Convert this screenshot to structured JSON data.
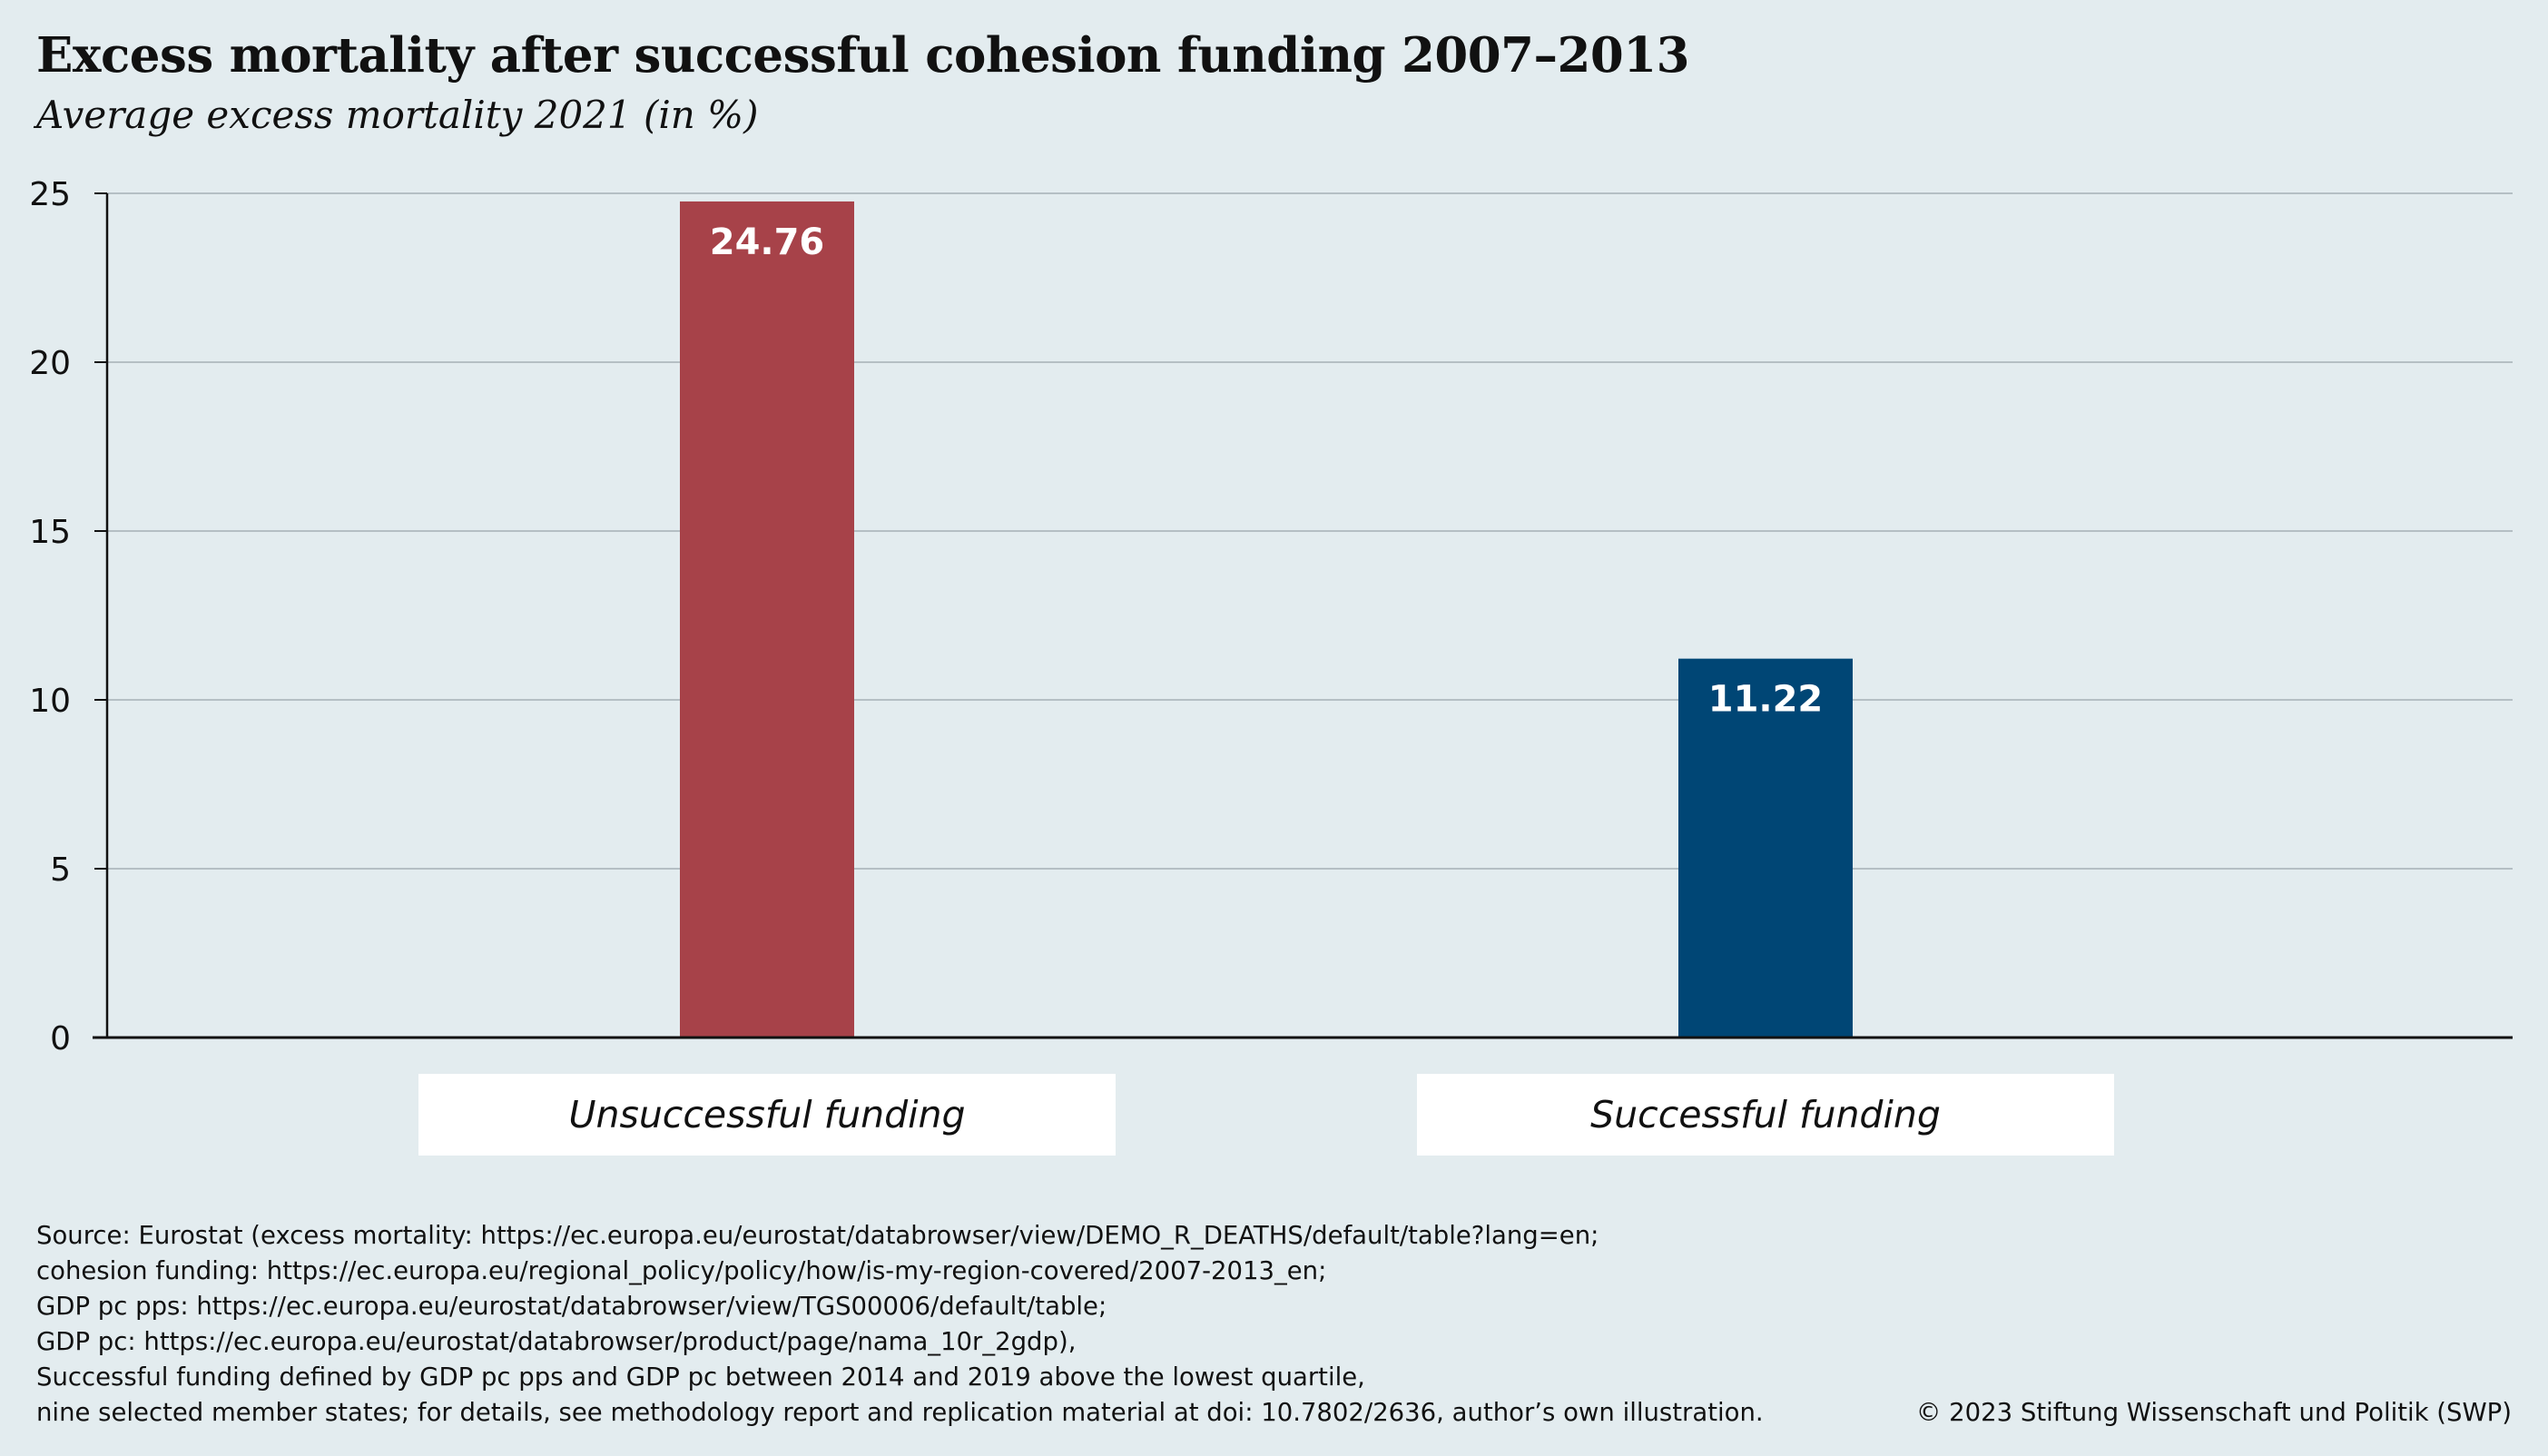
{
  "chart_data": {
    "type": "bar",
    "title": "Excess mortality after successful cohesion funding 2007–2013",
    "subtitle": "Average excess mortality 2021 (in %)",
    "xlabel": "",
    "ylabel": "",
    "categories": [
      "Unsuccessful funding",
      "Successful funding"
    ],
    "values": [
      24.76,
      11.22
    ],
    "value_labels": [
      "24.76",
      "11.22"
    ],
    "bar_colors": [
      "#a74249",
      "#004675"
    ],
    "ylim": [
      0,
      25
    ],
    "yticks": [
      0,
      5,
      10,
      15,
      20,
      25
    ],
    "ytick_labels": [
      "0",
      "5",
      "10",
      "15",
      "20",
      "25"
    ],
    "grid": true,
    "legend": "none"
  },
  "notes": [
    "Source: Eurostat (excess mortality: https://ec.europa.eu/eurostat/databrowser/view/DEMO_R_DEATHS/default/table?lang=en;",
    "cohesion funding: https://ec.europa.eu/regional_policy/policy/how/is-my-region-covered/2007-2013_en;",
    "GDP pc pps: https://ec.europa.eu/eurostat/databrowser/view/TGS00006/default/table;",
    "GDP pc: https://ec.europa.eu/eurostat/databrowser/product/page/nama_10r_2gdp),",
    "Successful funding defined by GDP pc pps and GDP pc between 2014 and 2019 above the lowest quartile,",
    "nine selected member states; for details, see methodology report and replication material at doi: 10.7802/2636, author’s own illustration."
  ],
  "copyright": "© 2023 Stiftung Wissenschaft und Politik (SWP)",
  "colors": {
    "background": "#e3ecef",
    "gridline": "#b5bfc4",
    "axis": "#111111"
  }
}
